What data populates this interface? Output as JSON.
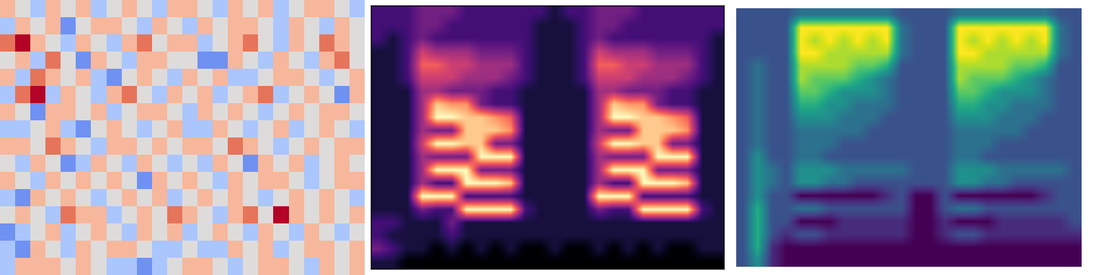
{
  "chart_data": [
    {
      "type": "heatmap",
      "color": "coolwarm",
      "tick_labels": false,
      "cells": [
        [
          1,
          0,
          -1,
          1,
          0,
          1,
          -1,
          0,
          1,
          0,
          -1,
          1,
          1,
          0,
          -1,
          1,
          0,
          1,
          -1,
          0,
          1,
          1,
          0,
          -1
        ],
        [
          -1,
          1,
          0,
          1,
          -2,
          0,
          1,
          1,
          0,
          -1,
          1,
          0,
          -1,
          1,
          0,
          1,
          1,
          0,
          -1,
          1,
          0,
          -1,
          1,
          0
        ],
        [
          2,
          3,
          1,
          0,
          -1,
          1,
          0,
          -1,
          1,
          2,
          0,
          1,
          1,
          -1,
          0,
          1,
          2,
          0,
          -1,
          1,
          0,
          2,
          1,
          0
        ],
        [
          0,
          1,
          -1,
          2,
          0,
          -2,
          1,
          0,
          -1,
          1,
          1,
          0,
          0,
          -2,
          -2,
          1,
          0,
          -1,
          1,
          0,
          -1,
          1,
          2,
          0
        ],
        [
          1,
          -1,
          2,
          1,
          0,
          1,
          -1,
          -2,
          0,
          1,
          0,
          -1,
          1,
          0,
          1,
          -1,
          -1,
          0,
          1,
          1,
          0,
          -1,
          0,
          1
        ],
        [
          -1,
          2,
          3,
          -1,
          1,
          0,
          -1,
          1,
          2,
          0,
          -1,
          1,
          0,
          1,
          -1,
          0,
          1,
          2,
          -1,
          0,
          1,
          0,
          -2,
          1
        ],
        [
          1,
          0,
          -2,
          1,
          1,
          0,
          1,
          -1,
          0,
          1,
          1,
          0,
          -1,
          1,
          0,
          1,
          0,
          -1,
          0,
          1,
          0,
          1,
          1,
          0
        ],
        [
          -1,
          -1,
          0,
          1,
          -1,
          -2,
          0,
          1,
          0,
          -1,
          0,
          1,
          -1,
          -1,
          1,
          0,
          -1,
          0,
          1,
          -1,
          0,
          1,
          0,
          -1
        ],
        [
          1,
          1,
          0,
          2,
          1,
          0,
          -1,
          1,
          1,
          0,
          1,
          0,
          1,
          1,
          0,
          2,
          1,
          0,
          -1,
          0,
          1,
          0,
          1,
          1
        ],
        [
          0,
          -1,
          1,
          0,
          -2,
          -1,
          1,
          0,
          -1,
          1,
          0,
          -1,
          0,
          -1,
          1,
          0,
          -2,
          1,
          0,
          1,
          -1,
          0,
          1,
          0
        ],
        [
          1,
          0,
          -1,
          1,
          0,
          1,
          0,
          1,
          0,
          -2,
          1,
          0,
          1,
          0,
          -1,
          1,
          0,
          1,
          1,
          0,
          -1,
          0,
          1,
          1
        ],
        [
          -1,
          -2,
          1,
          0,
          1,
          0,
          -1,
          0,
          1,
          0,
          1,
          -1,
          0,
          1,
          0,
          1,
          0,
          -1,
          0,
          1,
          0,
          1,
          0,
          -1
        ],
        [
          0,
          1,
          0,
          -1,
          2,
          1,
          1,
          -1,
          0,
          1,
          0,
          2,
          1,
          0,
          -1,
          1,
          2,
          0,
          3,
          1,
          0,
          1,
          0,
          1
        ],
        [
          -2,
          -1,
          0,
          1,
          -1,
          0,
          1,
          0,
          -1,
          1,
          0,
          1,
          -1,
          0,
          1,
          0,
          -1,
          1,
          0,
          -1,
          1,
          0,
          -1,
          0
        ],
        [
          -1,
          -2,
          1,
          0,
          -1,
          1,
          0,
          1,
          1,
          0,
          -1,
          -1,
          0,
          -1,
          -1,
          1,
          0,
          1,
          -1,
          0,
          1,
          1,
          0,
          1
        ],
        [
          -1,
          1,
          1,
          1,
          0,
          1,
          0,
          -1,
          -1,
          -2,
          -1,
          0,
          1,
          1,
          0,
          -1,
          0,
          1,
          1,
          0,
          -1,
          1,
          0,
          1
        ]
      ]
    },
    {
      "type": "heatmap",
      "color": "magma",
      "tick_labels": false,
      "cells": [
        [
          2,
          2,
          2,
          3,
          3,
          3,
          2,
          2,
          2,
          2,
          2,
          2,
          1,
          2,
          2,
          3,
          3,
          3,
          2,
          2,
          2,
          2,
          2,
          2
        ],
        [
          2,
          2,
          2,
          3,
          3,
          2,
          2,
          2,
          2,
          2,
          2,
          1,
          1,
          1,
          2,
          3,
          3,
          2,
          2,
          2,
          2,
          2,
          2,
          2
        ],
        [
          2,
          1,
          2,
          3,
          2,
          2,
          2,
          2,
          2,
          2,
          2,
          1,
          1,
          1,
          2,
          3,
          2,
          2,
          2,
          2,
          2,
          2,
          2,
          1
        ],
        [
          1,
          1,
          2,
          5,
          4,
          4,
          4,
          3,
          3,
          3,
          2,
          1,
          1,
          1,
          2,
          5,
          4,
          4,
          4,
          3,
          3,
          3,
          2,
          1
        ],
        [
          1,
          1,
          2,
          6,
          6,
          5,
          5,
          4,
          4,
          4,
          2,
          1,
          1,
          1,
          2,
          6,
          6,
          5,
          5,
          4,
          4,
          4,
          2,
          1
        ],
        [
          1,
          1,
          2,
          5,
          5,
          5,
          4,
          4,
          4,
          3,
          2,
          1,
          1,
          1,
          2,
          5,
          5,
          5,
          4,
          4,
          4,
          3,
          2,
          1
        ],
        [
          1,
          1,
          1,
          4,
          4,
          3,
          3,
          3,
          2,
          2,
          1,
          1,
          1,
          1,
          1,
          4,
          4,
          3,
          3,
          3,
          2,
          2,
          1,
          1
        ],
        [
          1,
          1,
          1,
          4,
          8,
          7,
          7,
          3,
          2,
          2,
          1,
          1,
          1,
          1,
          1,
          4,
          8,
          7,
          7,
          3,
          2,
          2,
          1,
          1
        ],
        [
          1,
          1,
          1,
          4,
          9,
          9,
          8,
          8,
          7,
          6,
          1,
          1,
          1,
          1,
          1,
          4,
          9,
          9,
          8,
          8,
          7,
          6,
          1,
          1
        ],
        [
          1,
          1,
          1,
          4,
          3,
          3,
          8,
          8,
          8,
          7,
          1,
          1,
          1,
          1,
          1,
          4,
          3,
          3,
          8,
          8,
          8,
          7,
          1,
          1
        ],
        [
          1,
          1,
          1,
          5,
          9,
          9,
          8,
          8,
          3,
          3,
          1,
          1,
          1,
          1,
          1,
          5,
          9,
          9,
          8,
          8,
          3,
          3,
          1,
          1
        ],
        [
          1,
          1,
          1,
          4,
          3,
          3,
          3,
          9,
          9,
          9,
          1,
          1,
          1,
          1,
          1,
          4,
          3,
          3,
          3,
          9,
          9,
          9,
          1,
          1
        ],
        [
          1,
          1,
          1,
          4,
          9,
          9,
          9,
          3,
          3,
          3,
          1,
          1,
          1,
          1,
          1,
          4,
          9,
          9,
          9,
          3,
          3,
          3,
          1,
          1
        ],
        [
          1,
          1,
          1,
          4,
          2,
          2,
          9,
          9,
          9,
          8,
          1,
          1,
          1,
          1,
          1,
          4,
          2,
          2,
          9,
          9,
          9,
          8,
          1,
          1
        ],
        [
          1,
          1,
          1,
          9,
          9,
          9,
          2,
          2,
          2,
          2,
          1,
          1,
          1,
          1,
          1,
          9,
          9,
          9,
          2,
          2,
          2,
          2,
          1,
          1
        ],
        [
          1,
          1,
          1,
          3,
          2,
          2,
          9,
          9,
          9,
          9,
          2,
          1,
          1,
          1,
          1,
          3,
          2,
          2,
          9,
          9,
          9,
          9,
          2,
          1
        ],
        [
          2,
          2,
          1,
          1,
          1,
          3,
          1,
          1,
          1,
          1,
          1,
          1,
          1,
          1,
          1,
          1,
          1,
          1,
          1,
          1,
          1,
          1,
          1,
          1
        ],
        [
          2,
          1,
          1,
          1,
          1,
          2,
          1,
          1,
          1,
          1,
          1,
          1,
          1,
          1,
          1,
          1,
          1,
          1,
          1,
          1,
          1,
          1,
          1,
          1
        ],
        [
          3,
          2,
          1,
          1,
          0,
          1,
          0,
          1,
          0,
          1,
          0,
          0,
          1,
          0,
          0,
          1,
          0,
          1,
          0,
          1,
          0,
          0,
          1,
          1
        ],
        [
          1,
          1,
          0,
          0,
          0,
          0,
          0,
          0,
          0,
          0,
          0,
          0,
          0,
          0,
          0,
          0,
          0,
          0,
          0,
          0,
          0,
          0,
          0,
          0
        ]
      ]
    },
    {
      "type": "heatmap",
      "color": "viridis",
      "tick_labels": false,
      "cells": [
        [
          3,
          3,
          3,
          3,
          4,
          4,
          4,
          4,
          4,
          4,
          4,
          3,
          3,
          3,
          3,
          4,
          4,
          4,
          4,
          4,
          4,
          4,
          3,
          3
        ],
        [
          3,
          3,
          3,
          3,
          9,
          9,
          9,
          9,
          9,
          9,
          9,
          4,
          3,
          3,
          3,
          9,
          9,
          9,
          9,
          9,
          9,
          9,
          4,
          3
        ],
        [
          3,
          3,
          3,
          3,
          9,
          8,
          9,
          8,
          9,
          8,
          9,
          4,
          3,
          3,
          3,
          9,
          8,
          9,
          8,
          9,
          8,
          9,
          4,
          3
        ],
        [
          3,
          3,
          3,
          3,
          9,
          9,
          8,
          8,
          8,
          8,
          8,
          4,
          3,
          3,
          3,
          9,
          9,
          8,
          8,
          8,
          8,
          8,
          4,
          3
        ],
        [
          3,
          4,
          3,
          3,
          8,
          8,
          8,
          8,
          7,
          7,
          6,
          3,
          3,
          3,
          3,
          8,
          8,
          8,
          8,
          7,
          7,
          6,
          3,
          3
        ],
        [
          3,
          4,
          3,
          3,
          8,
          7,
          7,
          7,
          6,
          5,
          4,
          3,
          3,
          3,
          3,
          8,
          7,
          7,
          7,
          6,
          5,
          4,
          3,
          3
        ],
        [
          3,
          4,
          3,
          3,
          7,
          7,
          6,
          5,
          5,
          5,
          4,
          3,
          3,
          3,
          3,
          7,
          7,
          6,
          5,
          5,
          5,
          4,
          3,
          3
        ],
        [
          3,
          4,
          3,
          3,
          6,
          6,
          5,
          5,
          4,
          4,
          4,
          3,
          3,
          3,
          3,
          6,
          6,
          5,
          5,
          4,
          4,
          4,
          3,
          3
        ],
        [
          3,
          4,
          3,
          3,
          5,
          5,
          5,
          4,
          4,
          4,
          3,
          3,
          3,
          3,
          3,
          5,
          5,
          5,
          4,
          4,
          4,
          3,
          3,
          3
        ],
        [
          3,
          4,
          3,
          3,
          4,
          4,
          4,
          4,
          4,
          3,
          3,
          3,
          3,
          3,
          3,
          4,
          4,
          4,
          4,
          4,
          3,
          3,
          3,
          3
        ],
        [
          3,
          4,
          3,
          3,
          4,
          4,
          4,
          3,
          3,
          3,
          3,
          3,
          3,
          3,
          3,
          4,
          4,
          4,
          3,
          3,
          3,
          3,
          3,
          3
        ],
        [
          3,
          5,
          3,
          3,
          4,
          4,
          3,
          3,
          3,
          3,
          3,
          3,
          3,
          3,
          3,
          4,
          4,
          3,
          3,
          3,
          3,
          3,
          3,
          3
        ],
        [
          3,
          5,
          4,
          3,
          5,
          5,
          5,
          4,
          4,
          4,
          4,
          4,
          3,
          3,
          3,
          5,
          5,
          5,
          4,
          4,
          4,
          4,
          4,
          3
        ],
        [
          3,
          5,
          4,
          3,
          5,
          5,
          4,
          4,
          3,
          3,
          3,
          3,
          3,
          3,
          3,
          5,
          5,
          4,
          4,
          3,
          3,
          3,
          3,
          3
        ],
        [
          3,
          5,
          3,
          3,
          1,
          1,
          1,
          1,
          1,
          1,
          2,
          3,
          1,
          1,
          3,
          1,
          1,
          1,
          1,
          1,
          1,
          2,
          3,
          3
        ],
        [
          3,
          6,
          3,
          3,
          4,
          4,
          3,
          3,
          3,
          3,
          3,
          3,
          1,
          1,
          3,
          4,
          4,
          3,
          3,
          3,
          3,
          3,
          3,
          3
        ],
        [
          3,
          6,
          3,
          3,
          1,
          1,
          1,
          2,
          2,
          2,
          2,
          2,
          1,
          1,
          2,
          1,
          1,
          1,
          2,
          2,
          2,
          2,
          2,
          3
        ],
        [
          3,
          6,
          3,
          2,
          3,
          3,
          2,
          2,
          2,
          2,
          2,
          2,
          1,
          1,
          2,
          3,
          3,
          2,
          2,
          2,
          2,
          2,
          2,
          2
        ],
        [
          3,
          6,
          2,
          1,
          1,
          1,
          1,
          1,
          1,
          1,
          1,
          1,
          1,
          1,
          1,
          1,
          1,
          1,
          1,
          1,
          1,
          1,
          1,
          1
        ],
        [
          3,
          5,
          2,
          1,
          1,
          1,
          1,
          1,
          1,
          1,
          1,
          1,
          1,
          1,
          1,
          1,
          1,
          1,
          1,
          1,
          1,
          1,
          1,
          1
        ]
      ]
    }
  ]
}
